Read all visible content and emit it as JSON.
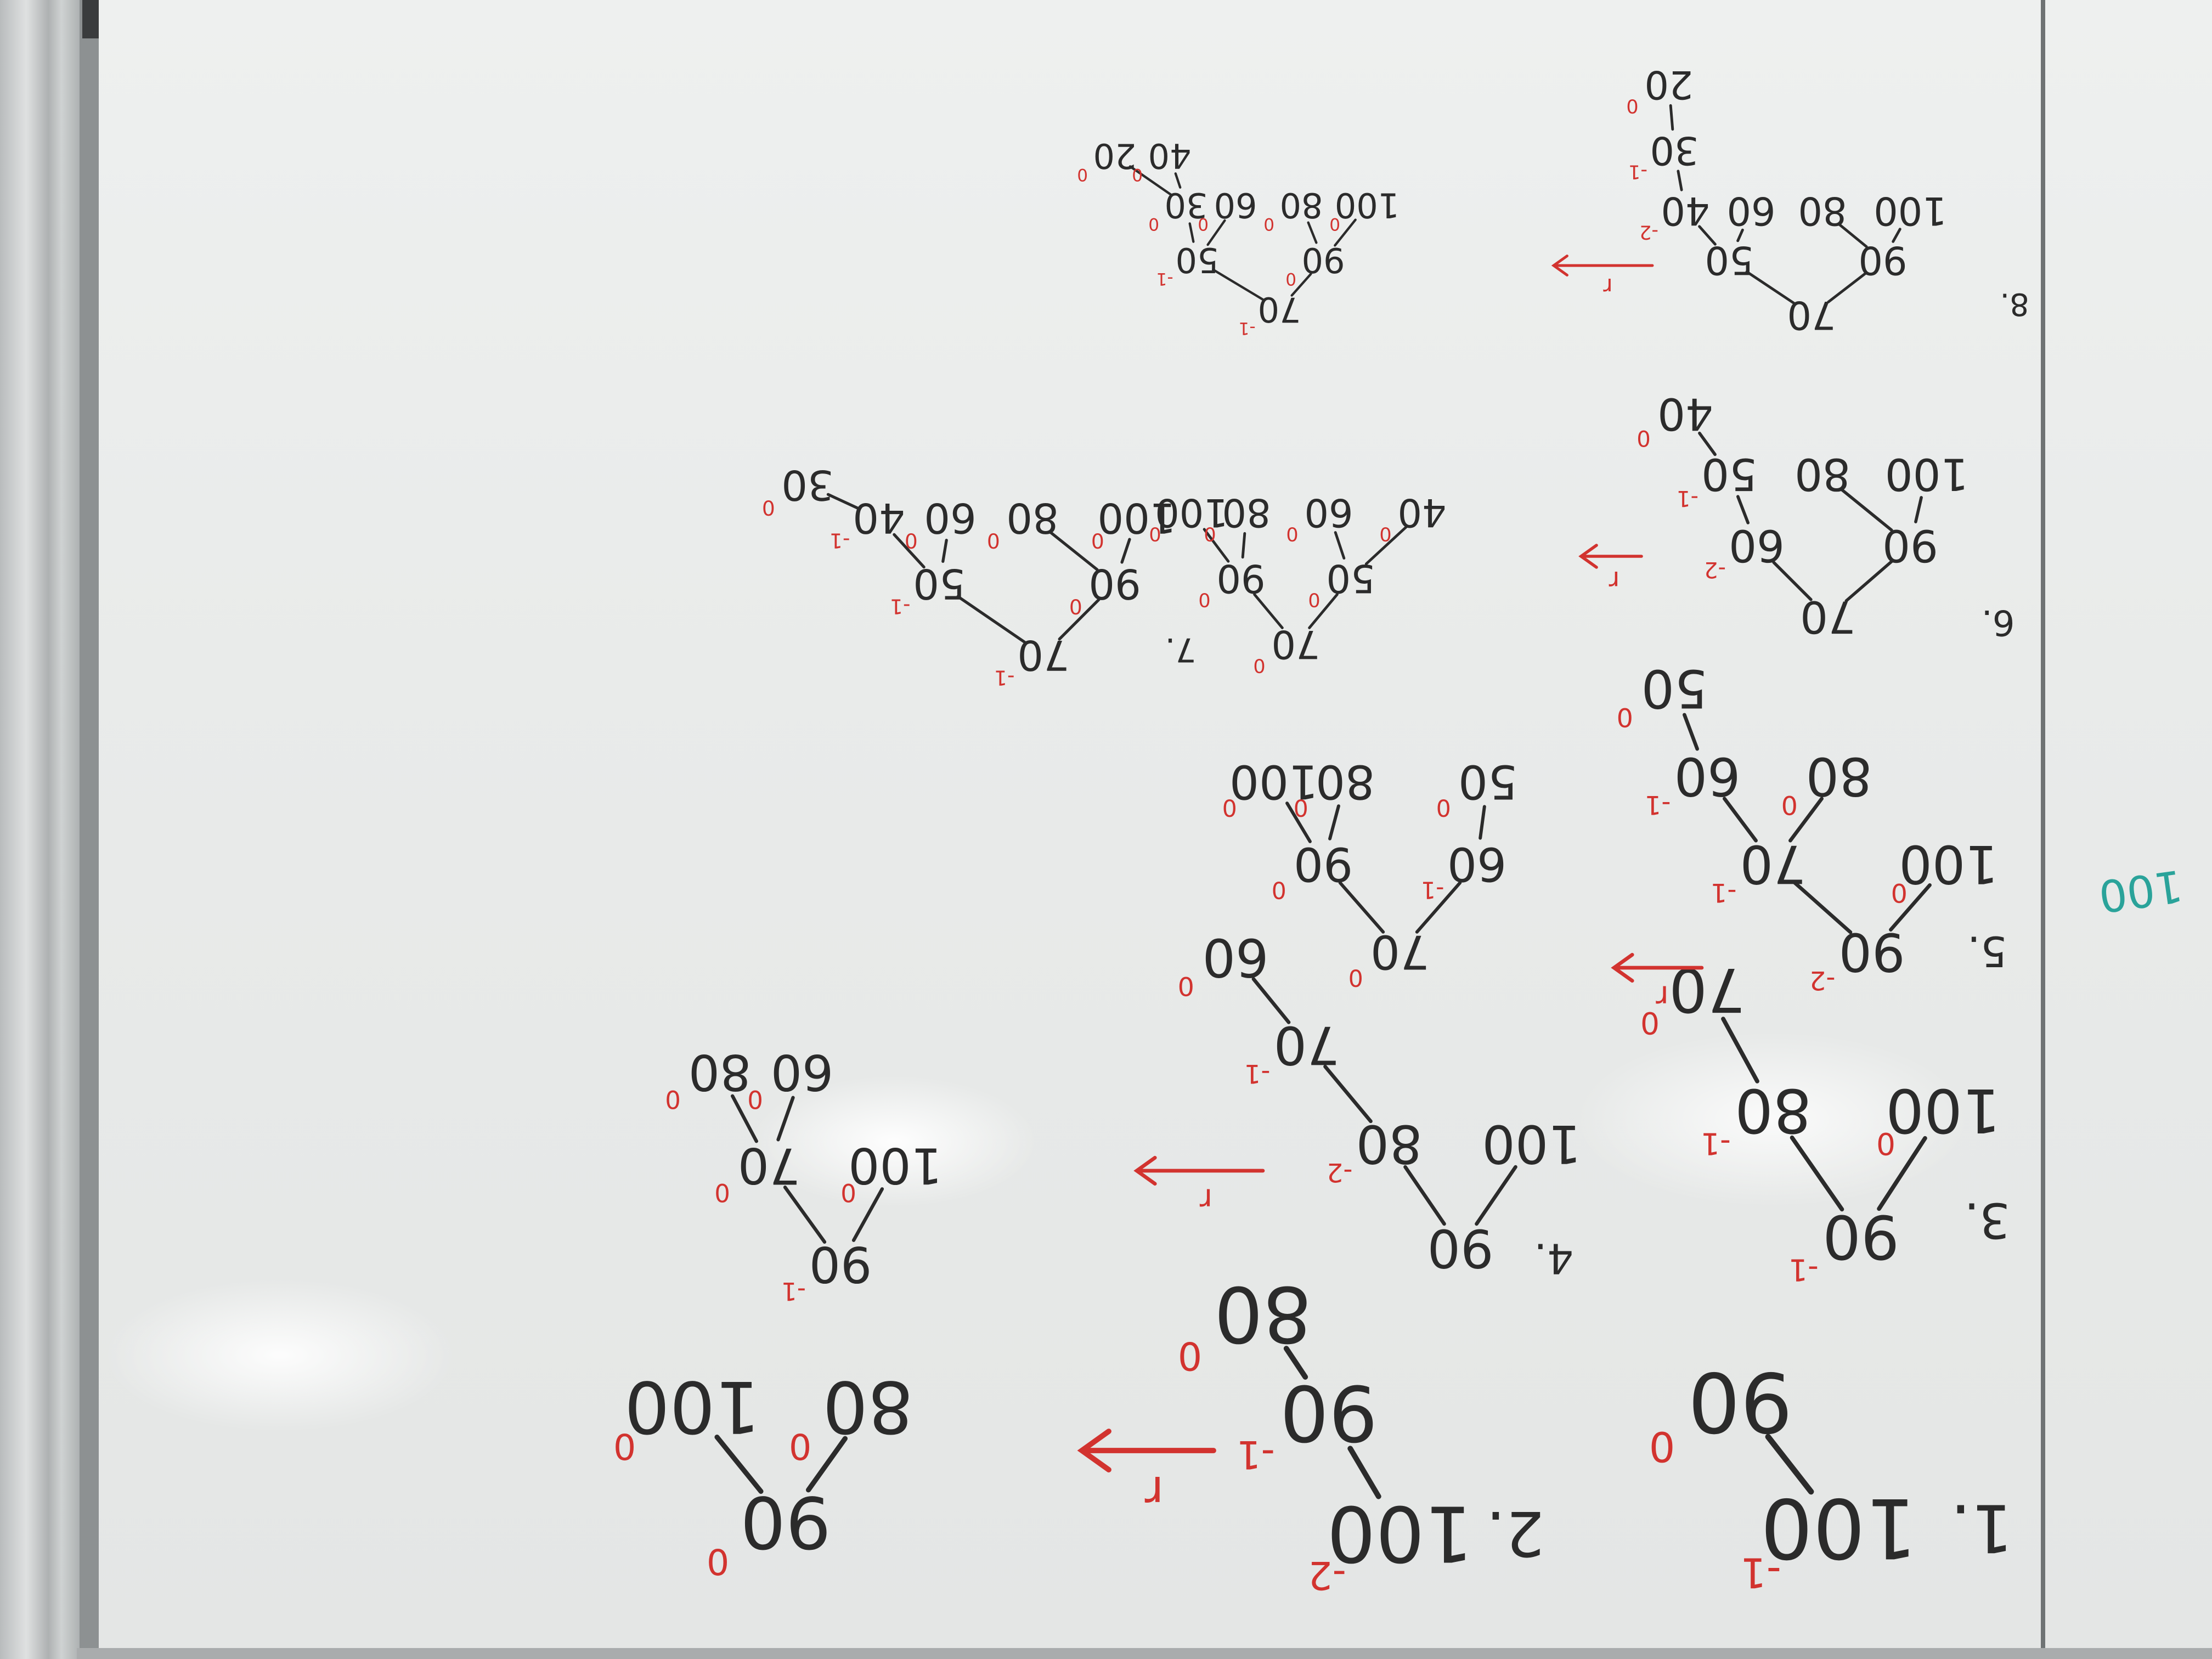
{
  "ink": {
    "black": "#2b2b2b",
    "red": "#d2332f",
    "teal": "#2aa39a"
  },
  "rotation_deg": 180,
  "steps": [
    {
      "label": "1.",
      "nodes": [
        {
          "v": "100",
          "bf": "-1"
        },
        {
          "v": "90",
          "bf": "0"
        }
      ]
    },
    {
      "label": "2.",
      "nodes": [
        {
          "v": "100",
          "bf": "-2"
        },
        {
          "v": "90",
          "bf": "-1"
        },
        {
          "v": "80",
          "bf": "0"
        }
      ],
      "arrow_label": "r",
      "result": [
        {
          "v": "90",
          "bf": "0"
        },
        {
          "v": "80",
          "bf": "0"
        },
        {
          "v": "100",
          "bf": "0"
        }
      ]
    },
    {
      "label": "3.",
      "nodes": [
        {
          "v": "90",
          "bf": "-1"
        },
        {
          "v": "80",
          "bf": "-1"
        },
        {
          "v": "100",
          "bf": "0"
        },
        {
          "v": "70",
          "bf": "0"
        }
      ]
    },
    {
      "label": "4.",
      "nodes": [
        {
          "v": "90",
          "bf": ""
        },
        {
          "v": "80",
          "bf": "-2"
        },
        {
          "v": "100",
          "bf": ""
        },
        {
          "v": "70",
          "bf": "-1"
        },
        {
          "v": "60",
          "bf": "0"
        }
      ],
      "arrow_label": "r",
      "result": [
        {
          "v": "90",
          "bf": "-1"
        },
        {
          "v": "70",
          "bf": "0"
        },
        {
          "v": "100",
          "bf": "0"
        },
        {
          "v": "60",
          "bf": "0"
        },
        {
          "v": "80",
          "bf": "0"
        }
      ]
    },
    {
      "label": "5.",
      "nodes": [
        {
          "v": "90",
          "bf": "-2"
        },
        {
          "v": "70",
          "bf": "-1"
        },
        {
          "v": "100",
          "bf": "0"
        },
        {
          "v": "60",
          "bf": "-1"
        },
        {
          "v": "80",
          "bf": "0"
        },
        {
          "v": "50",
          "bf": "0"
        }
      ],
      "arrow_label": "r",
      "result": [
        {
          "v": "70",
          "bf": "0"
        },
        {
          "v": "60",
          "bf": "-1"
        },
        {
          "v": "90",
          "bf": "0"
        },
        {
          "v": "50",
          "bf": "0"
        },
        {
          "v": "80",
          "bf": "0"
        },
        {
          "v": "100",
          "bf": "0"
        }
      ]
    },
    {
      "label": "6.",
      "nodes": [
        {
          "v": "70",
          "bf": ""
        },
        {
          "v": "60",
          "bf": "-2"
        },
        {
          "v": "90",
          "bf": ""
        },
        {
          "v": "50",
          "bf": "-1"
        },
        {
          "v": "80",
          "bf": ""
        },
        {
          "v": "100",
          "bf": ""
        },
        {
          "v": "40",
          "bf": "0"
        }
      ],
      "arrow_label": "r",
      "result": [
        {
          "v": "70",
          "bf": "0"
        },
        {
          "v": "50",
          "bf": "0"
        },
        {
          "v": "90",
          "bf": "0"
        },
        {
          "v": "40",
          "bf": "0"
        },
        {
          "v": "60",
          "bf": "0"
        },
        {
          "v": "80",
          "bf": "0"
        },
        {
          "v": "100",
          "bf": "0"
        }
      ]
    },
    {
      "label": "7.",
      "nodes": [
        {
          "v": "70",
          "bf": "-1"
        },
        {
          "v": "50",
          "bf": "-1"
        },
        {
          "v": "90",
          "bf": "0"
        },
        {
          "v": "40",
          "bf": "-1"
        },
        {
          "v": "60",
          "bf": "0"
        },
        {
          "v": "80",
          "bf": "0"
        },
        {
          "v": "100",
          "bf": "0"
        },
        {
          "v": "30",
          "bf": "0"
        }
      ]
    },
    {
      "label": "8.",
      "nodes": [
        {
          "v": "70",
          "bf": ""
        },
        {
          "v": "50",
          "bf": ""
        },
        {
          "v": "90",
          "bf": ""
        },
        {
          "v": "40",
          "bf": "-2"
        },
        {
          "v": "60",
          "bf": ""
        },
        {
          "v": "80",
          "bf": ""
        },
        {
          "v": "100",
          "bf": ""
        },
        {
          "v": "30",
          "bf": "-1"
        },
        {
          "v": "20",
          "bf": "0"
        }
      ],
      "arrow_label": "r",
      "result": [
        {
          "v": "70",
          "bf": "-1"
        },
        {
          "v": "50",
          "bf": "-1"
        },
        {
          "v": "90",
          "bf": "0"
        },
        {
          "v": "30",
          "bf": "0"
        },
        {
          "v": "60",
          "bf": "0"
        },
        {
          "v": "80",
          "bf": "0"
        },
        {
          "v": "100",
          "bf": "0"
        },
        {
          "v": "20",
          "bf": "0"
        },
        {
          "v": "40",
          "bf": "0"
        }
      ]
    }
  ],
  "margin_note": "100"
}
